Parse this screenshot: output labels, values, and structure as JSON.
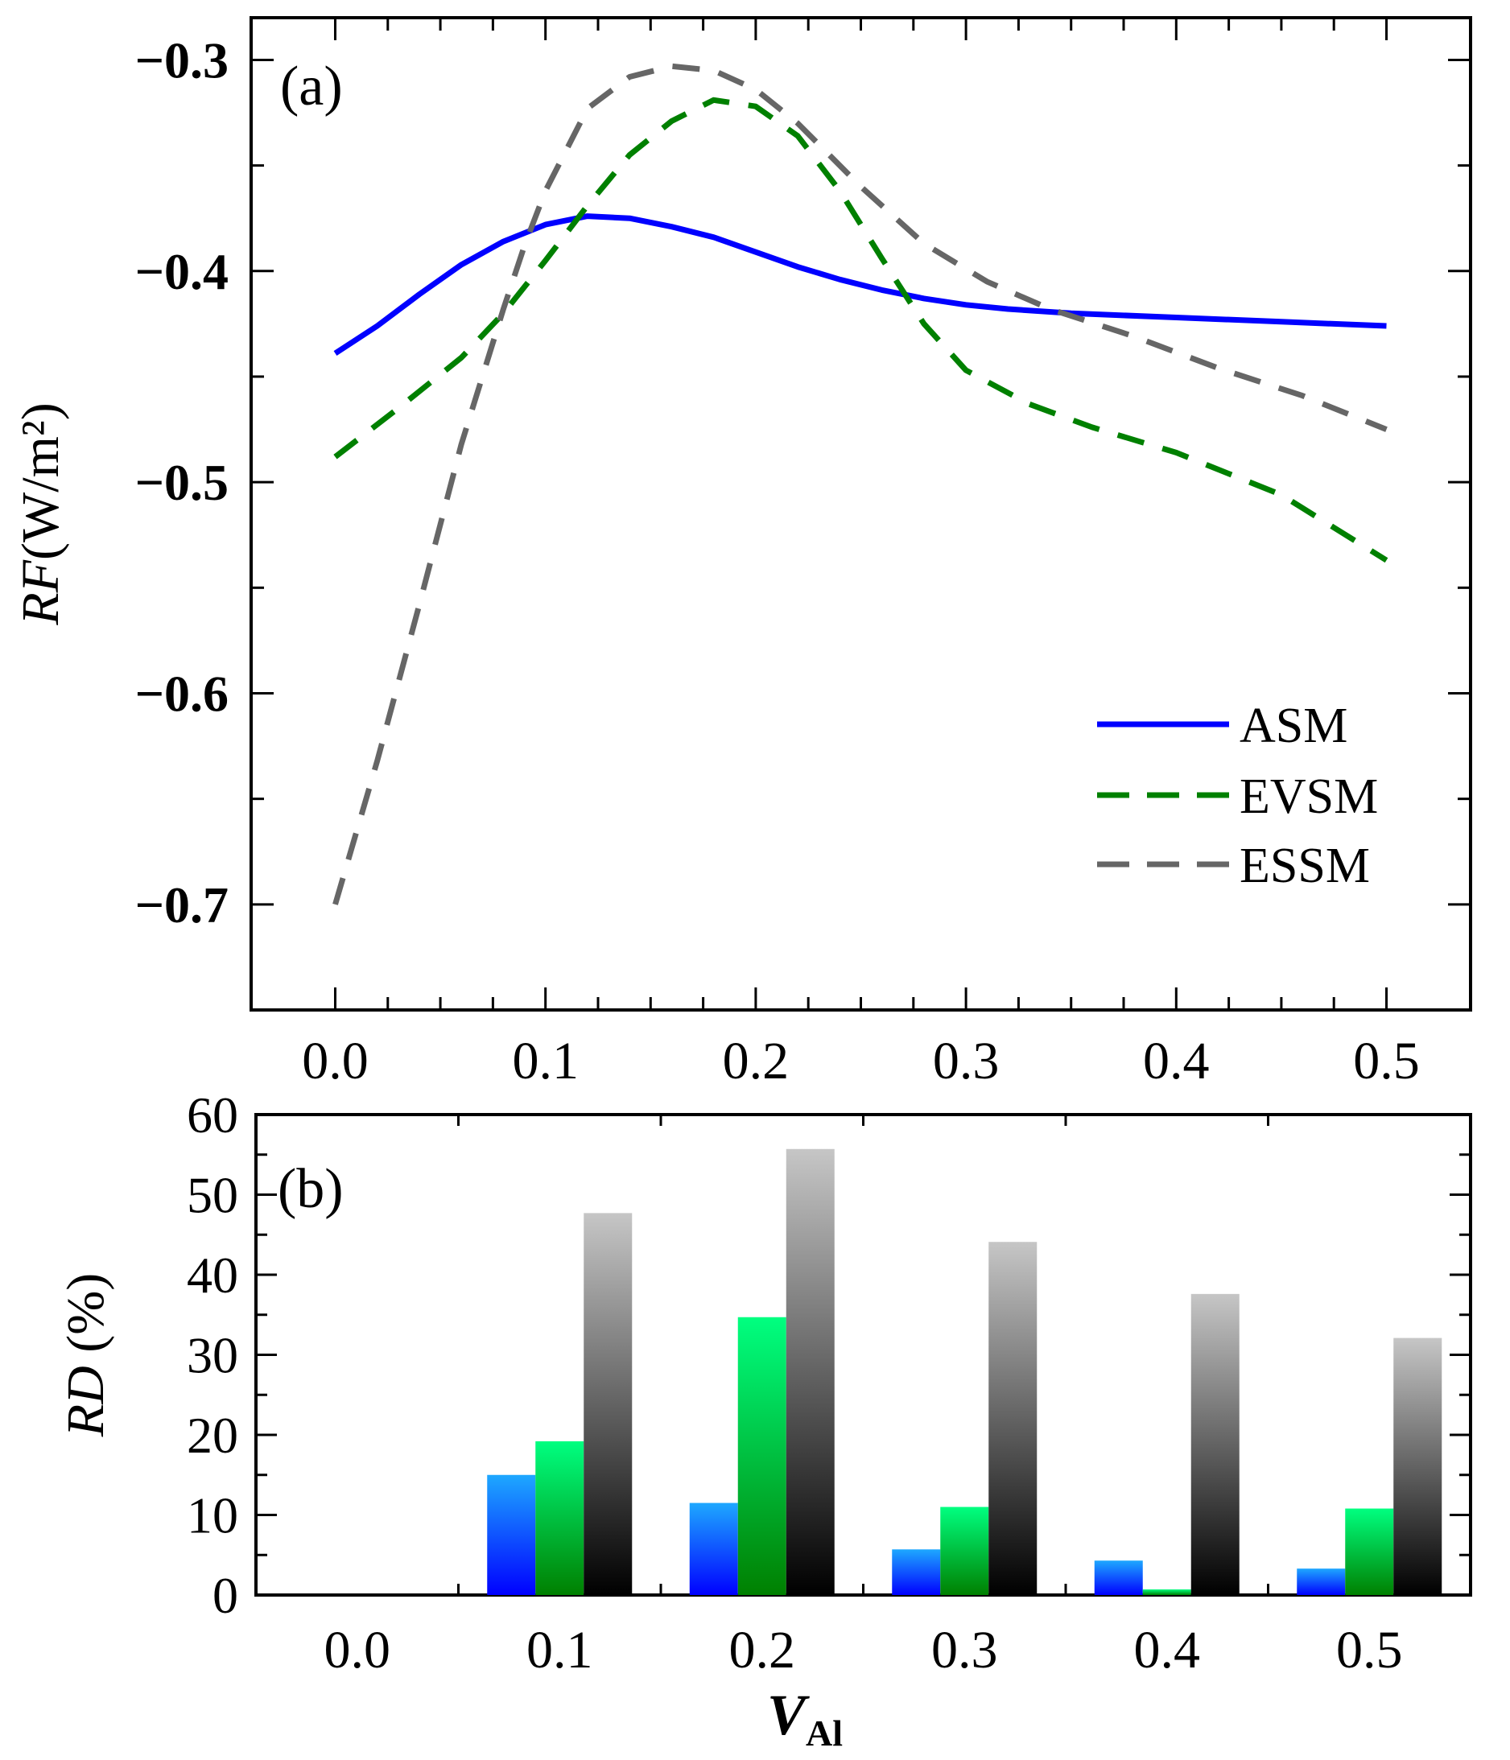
{
  "chart_data": [
    {
      "type": "line",
      "panel_label": "(a)",
      "ylabel_italic": "RF",
      "ylabel_unit": "(W/m²)",
      "xlim": [
        -0.04,
        0.54
      ],
      "ylim": [
        -0.75,
        -0.28
      ],
      "xticks": [
        0.0,
        0.1,
        0.2,
        0.3,
        0.4,
        0.5
      ],
      "xticklabels": [
        "0.0",
        "0.1",
        "0.2",
        "0.3",
        "0.4",
        "0.5"
      ],
      "yticks": [
        -0.3,
        -0.4,
        -0.5,
        -0.6,
        -0.7
      ],
      "yticklabels": [
        "−0.3",
        "−0.4",
        "−0.5",
        "−0.6",
        "−0.7"
      ],
      "legend_position": "bottom-right",
      "series": [
        {
          "name": "ASM",
          "color": "#0000ff",
          "dash": "solid",
          "x": [
            0.0,
            0.02,
            0.04,
            0.06,
            0.08,
            0.1,
            0.12,
            0.14,
            0.16,
            0.18,
            0.2,
            0.22,
            0.24,
            0.26,
            0.28,
            0.3,
            0.32,
            0.35,
            0.4,
            0.45,
            0.5
          ],
          "y": [
            -0.439,
            -0.426,
            -0.411,
            -0.397,
            -0.386,
            -0.378,
            -0.374,
            -0.375,
            -0.379,
            -0.384,
            -0.391,
            -0.398,
            -0.404,
            -0.409,
            -0.413,
            -0.416,
            -0.418,
            -0.42,
            -0.422,
            -0.424,
            -0.426
          ]
        },
        {
          "name": "EVSM",
          "color": "#008000",
          "dash": "dashed",
          "x": [
            0.0,
            0.03,
            0.06,
            0.08,
            0.1,
            0.12,
            0.14,
            0.16,
            0.18,
            0.2,
            0.22,
            0.24,
            0.26,
            0.28,
            0.3,
            0.33,
            0.36,
            0.4,
            0.45,
            0.5
          ],
          "y": [
            -0.488,
            -0.465,
            -0.441,
            -0.42,
            -0.395,
            -0.369,
            -0.345,
            -0.329,
            -0.319,
            -0.322,
            -0.336,
            -0.362,
            -0.394,
            -0.425,
            -0.447,
            -0.463,
            -0.474,
            -0.486,
            -0.506,
            -0.537
          ]
        },
        {
          "name": "ESSM",
          "color": "#666666",
          "dash": "dashed",
          "x": [
            0.0,
            0.02,
            0.04,
            0.06,
            0.08,
            0.09,
            0.1,
            0.12,
            0.14,
            0.16,
            0.18,
            0.2,
            0.22,
            0.25,
            0.28,
            0.31,
            0.34,
            0.38,
            0.42,
            0.46,
            0.5
          ],
          "y": [
            -0.7,
            -0.632,
            -0.558,
            -0.482,
            -0.418,
            -0.388,
            -0.362,
            -0.323,
            -0.308,
            -0.303,
            -0.305,
            -0.314,
            -0.33,
            -0.36,
            -0.387,
            -0.405,
            -0.418,
            -0.431,
            -0.446,
            -0.459,
            -0.475
          ]
        }
      ]
    },
    {
      "type": "bar",
      "panel_label": "(b)",
      "ylabel_italic": "RD",
      "ylabel_unit": " (%)",
      "xlabel_italic": "V",
      "xlabel_sub": "Al",
      "categories": [
        "0.0",
        "0.1",
        "0.2",
        "0.3",
        "0.4",
        "0.5"
      ],
      "ylim": [
        0,
        60
      ],
      "yticks": [
        0,
        10,
        20,
        30,
        40,
        50,
        60
      ],
      "yticklabels": [
        "0",
        "10",
        "20",
        "30",
        "40",
        "50",
        "60"
      ],
      "series": [
        {
          "key": "ASM",
          "color_top": "#1ea8ff",
          "color_bottom": "#0000ff",
          "values": [
            0,
            15.0,
            11.5,
            5.7,
            4.3,
            3.3
          ]
        },
        {
          "key": "EVSM",
          "color_top": "#00ff80",
          "color_bottom": "#008000",
          "values": [
            0,
            19.2,
            34.7,
            11.0,
            0.7,
            10.8
          ]
        },
        {
          "key": "ESSM",
          "color_top": "#c6c6c6",
          "color_bottom": "#000000",
          "values": [
            0,
            47.7,
            55.7,
            44.1,
            37.6,
            32.1
          ]
        }
      ]
    }
  ]
}
